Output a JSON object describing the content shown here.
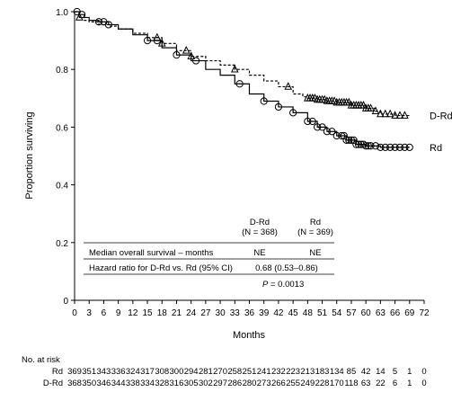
{
  "chart_data": {
    "type": "line",
    "title": "",
    "xlabel": "Months",
    "ylabel": "Proportion surviving",
    "xlim": [
      0,
      72
    ],
    "ylim": [
      0,
      1.0
    ],
    "x_ticks": [
      0,
      3,
      6,
      9,
      12,
      15,
      18,
      21,
      24,
      27,
      30,
      33,
      36,
      39,
      42,
      45,
      48,
      51,
      54,
      57,
      60,
      63,
      66,
      69,
      72
    ],
    "y_ticks": [
      0,
      0.2,
      0.4,
      0.6,
      0.8,
      1.0
    ],
    "y_tick_labels": [
      "0",
      "0.2",
      "0.4",
      "0.6",
      "0.8",
      "1.0"
    ],
    "grid": false,
    "series": [
      {
        "name": "D-Rd",
        "style": "dashed",
        "marker": "triangle",
        "color": "#000000",
        "x": [
          0,
          1,
          2,
          3,
          5,
          7,
          9,
          12,
          15,
          18,
          21,
          24,
          27,
          30,
          33,
          36,
          39,
          42,
          45,
          47,
          48,
          50,
          52,
          54,
          57,
          60,
          62,
          63,
          66,
          69
        ],
        "y": [
          1.0,
          0.98,
          0.97,
          0.965,
          0.955,
          0.95,
          0.94,
          0.925,
          0.91,
          0.89,
          0.865,
          0.845,
          0.83,
          0.815,
          0.8,
          0.78,
          0.76,
          0.74,
          0.715,
          0.705,
          0.7,
          0.695,
          0.69,
          0.685,
          0.675,
          0.665,
          0.655,
          0.645,
          0.64,
          0.64
        ],
        "censor_x": [
          1,
          17,
          18,
          23,
          24,
          33,
          44,
          48,
          48.5,
          49,
          49.5,
          50,
          50.5,
          51,
          51.5,
          52,
          52.5,
          53,
          53.5,
          54,
          54.5,
          55,
          55.5,
          56,
          56.5,
          57,
          57.5,
          58,
          58.5,
          59,
          59.5,
          60,
          60.5,
          61,
          62,
          63,
          64,
          65,
          66,
          67,
          68
        ]
      },
      {
        "name": "Rd",
        "style": "solid",
        "marker": "circle",
        "color": "#000000",
        "x": [
          0,
          1,
          2,
          3,
          5,
          7,
          9,
          12,
          15,
          18,
          21,
          24,
          27,
          30,
          33,
          36,
          39,
          42,
          45,
          48,
          50,
          52,
          54,
          56,
          58,
          60,
          63,
          66,
          69
        ],
        "y": [
          1.0,
          0.99,
          0.98,
          0.97,
          0.965,
          0.955,
          0.94,
          0.92,
          0.9,
          0.875,
          0.85,
          0.83,
          0.8,
          0.78,
          0.75,
          0.715,
          0.69,
          0.67,
          0.65,
          0.62,
          0.6,
          0.585,
          0.57,
          0.555,
          0.54,
          0.535,
          0.53,
          0.53,
          0.53
        ],
        "censor_x": [
          0.5,
          1.5,
          5,
          6,
          7,
          15,
          17,
          21,
          25,
          34,
          39,
          42,
          45,
          48,
          49,
          50,
          51,
          52,
          53,
          54,
          55,
          55.5,
          56,
          56.5,
          57,
          57.5,
          58,
          58.5,
          59,
          59.5,
          60,
          60.5,
          61,
          62,
          63,
          64,
          65,
          66,
          67,
          68,
          69
        ]
      }
    ],
    "annotation_table": {
      "col1_header": "D-Rd",
      "col1_sub": "(N = 368)",
      "col2_header": "Rd",
      "col2_sub": "(N = 369)",
      "row1_label": "Median overall survival – months",
      "row1_col1": "NE",
      "row1_col2": "NE",
      "row2_label": "Hazard ratio for D-Rd vs. Rd (95% CI)",
      "row2_value": "0.68 (0.53–0.86)",
      "p_label": "P",
      "p_value": " = 0.0013"
    },
    "risk_table": {
      "title": "No. at risk",
      "rows": [
        {
          "label": "Rd",
          "values": [
            "369",
            "351",
            "343",
            "336",
            "324",
            "317",
            "308",
            "300",
            "294",
            "281",
            "270",
            "258",
            "251",
            "241",
            "232",
            "223",
            "213",
            "183",
            "134",
            "85",
            "42",
            "14",
            "5",
            "1",
            "0"
          ]
        },
        {
          "label": "D-Rd",
          "values": [
            "368",
            "350",
            "346",
            "344",
            "338",
            "334",
            "328",
            "316",
            "305",
            "302",
            "297",
            "286",
            "280",
            "273",
            "266",
            "255",
            "249",
            "228",
            "170",
            "118",
            "63",
            "22",
            "6",
            "1",
            "0"
          ]
        }
      ]
    }
  }
}
